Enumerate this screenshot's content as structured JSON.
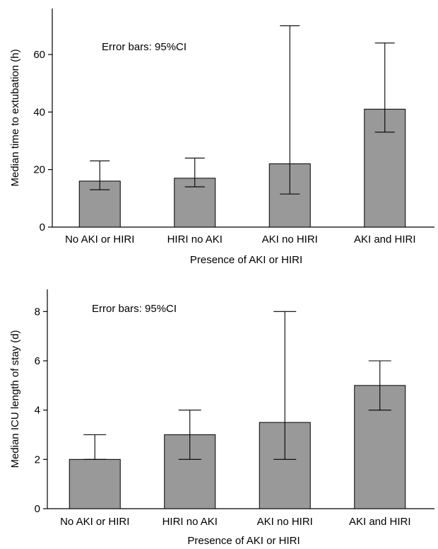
{
  "chart_data": [
    {
      "type": "bar",
      "categories": [
        "No AKI or HIRI",
        "HIRI no AKI",
        "AKI no HIRI",
        "AKI and HIRI"
      ],
      "values": [
        16,
        17,
        22,
        41
      ],
      "error_low": [
        13,
        14,
        11.5,
        33
      ],
      "error_high": [
        23,
        24,
        70,
        64
      ],
      "xlabel": "Presence of AKI or HIRI",
      "ylabel": "Median time to extubation (h)",
      "ylim": [
        0,
        76
      ],
      "yticks": [
        0,
        20,
        40,
        60
      ],
      "annotation": "Error bars: 95%CI",
      "grid": false
    },
    {
      "type": "bar",
      "categories": [
        "No AKI or HIRI",
        "HIRI no AKI",
        "AKI no HIRI",
        "AKI and HIRI"
      ],
      "values": [
        2,
        3,
        3.5,
        5
      ],
      "error_low": [
        2,
        2,
        2,
        4
      ],
      "error_high": [
        3,
        4,
        8,
        6
      ],
      "xlabel": "Presence of AKI or HIRI",
      "ylabel": "Median ICU length of stay (d)",
      "ylim": [
        0,
        8.9
      ],
      "yticks": [
        0,
        2,
        4,
        6,
        8
      ],
      "annotation": "Error bars: 95%CI",
      "grid": false
    }
  ],
  "colors": {
    "bar_fill": "#999999",
    "axis": "#000000",
    "background": "#ffffff"
  }
}
